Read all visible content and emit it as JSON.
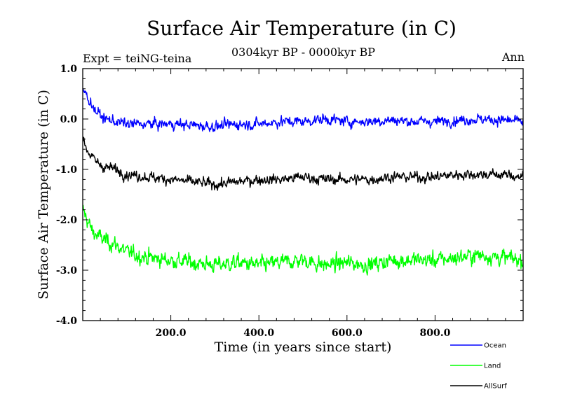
{
  "chart_data": {
    "type": "line",
    "title": "Surface Air Temperature (in C)",
    "subtitle": "0304kyr BP - 0000kyr BP",
    "expt_label": "Expt = teiNG-teina",
    "period_label": "Ann",
    "xlabel": "Time (in years since start)",
    "ylabel": "Surface Air Temperature (in C)",
    "xlim": [
      0,
      1000
    ],
    "ylim": [
      -4.0,
      1.0
    ],
    "x_ticks": [
      200,
      400,
      600,
      800
    ],
    "x_tick_labels": [
      "200.0",
      "400.0",
      "600.0",
      "800.0"
    ],
    "y_ticks": [
      1.0,
      0.0,
      -1.0,
      -2.0,
      -3.0,
      -4.0
    ],
    "y_tick_labels": [
      "1.0",
      "0.0",
      "-1.0",
      "-2.0",
      "-3.0",
      "-4.0"
    ],
    "legend_position": "bottom-right",
    "series": [
      {
        "name": "Ocean",
        "color": "#0000ff",
        "x": [
          0,
          10,
          20,
          30,
          50,
          75,
          100,
          150,
          200,
          250,
          300,
          350,
          400,
          450,
          500,
          550,
          600,
          650,
          700,
          750,
          800,
          850,
          900,
          950,
          1000
        ],
        "values": [
          0.6,
          0.45,
          0.3,
          0.15,
          0.0,
          -0.05,
          -0.1,
          -0.1,
          -0.1,
          -0.12,
          -0.15,
          -0.1,
          -0.1,
          -0.05,
          -0.05,
          0.0,
          -0.05,
          -0.05,
          -0.02,
          -0.05,
          -0.05,
          -0.02,
          0.0,
          -0.02,
          -0.05
        ],
        "noise": 0.12
      },
      {
        "name": "Land",
        "color": "#00ff00",
        "x": [
          0,
          10,
          20,
          30,
          50,
          75,
          100,
          150,
          200,
          250,
          300,
          350,
          400,
          450,
          500,
          550,
          600,
          650,
          700,
          750,
          800,
          850,
          900,
          950,
          1000
        ],
        "values": [
          -1.8,
          -2.0,
          -2.2,
          -2.3,
          -2.4,
          -2.5,
          -2.65,
          -2.75,
          -2.8,
          -2.85,
          -2.9,
          -2.85,
          -2.9,
          -2.85,
          -2.8,
          -2.9,
          -2.85,
          -2.9,
          -2.8,
          -2.8,
          -2.8,
          -2.75,
          -2.7,
          -2.75,
          -2.8
        ],
        "noise": 0.18
      },
      {
        "name": "AllSurf",
        "color": "#000000",
        "x": [
          0,
          10,
          20,
          30,
          50,
          75,
          100,
          150,
          200,
          250,
          300,
          350,
          400,
          450,
          500,
          550,
          600,
          650,
          700,
          750,
          800,
          850,
          900,
          950,
          1000
        ],
        "values": [
          -0.4,
          -0.6,
          -0.75,
          -0.85,
          -0.95,
          -1.0,
          -1.1,
          -1.15,
          -1.2,
          -1.25,
          -1.3,
          -1.25,
          -1.2,
          -1.2,
          -1.15,
          -1.2,
          -1.2,
          -1.2,
          -1.15,
          -1.15,
          -1.15,
          -1.1,
          -1.1,
          -1.1,
          -1.15
        ],
        "noise": 0.12
      }
    ]
  }
}
